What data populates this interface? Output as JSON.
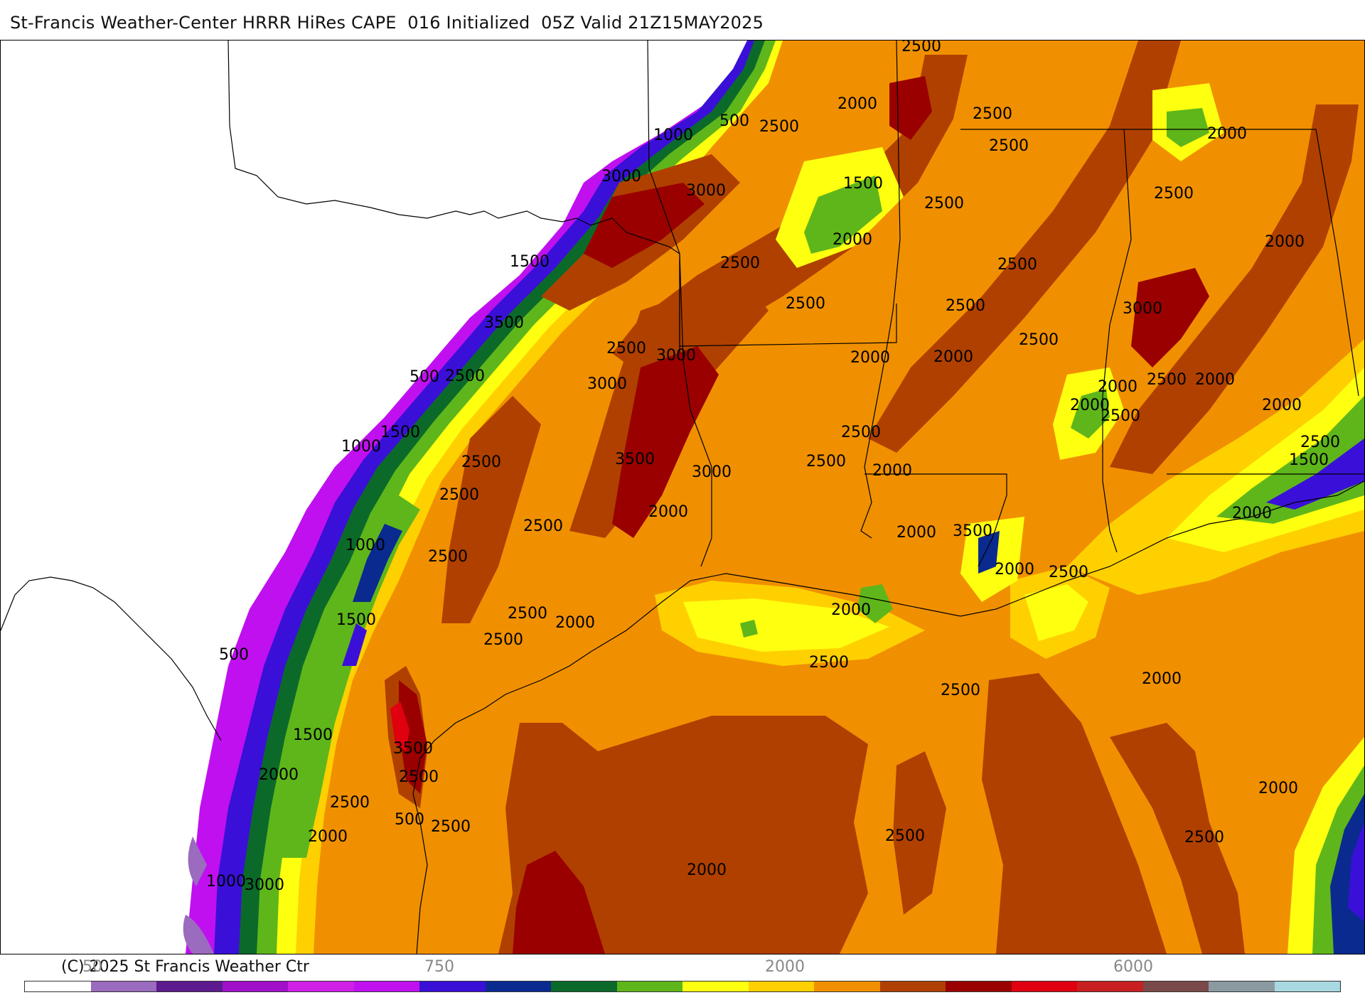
{
  "title": "St-Francis Weather-Center HRRR HiRes CAPE  016 Initialized  05Z Valid 21Z15MAY2025",
  "copyright": "(C) 2025 St Francis Weather Ctr",
  "colorbar": {
    "ticks": [
      "50",
      "750",
      "2000",
      "6000"
    ],
    "colors": [
      "#ffffff",
      "#9b6bbf",
      "#5c1a8e",
      "#a010c8",
      "#d020e6",
      "#c010f0",
      "#3a10d8",
      "#0a2a90",
      "#0b6a2a",
      "#5fb61a",
      "#ffff10",
      "#ffd000",
      "#f09000",
      "#b04000",
      "#9a0000",
      "#e00010",
      "#c82020",
      "#7a4a4a",
      "#8a9aa0",
      "#a8d8e0"
    ]
  },
  "map": {
    "layer": "CAPE",
    "contour_labels": [
      "2500",
      "2000",
      "2500",
      "1000",
      "500",
      "2500",
      "2000",
      "2500",
      "3000",
      "3000",
      "2500",
      "1500",
      "2500",
      "2000",
      "2500",
      "2500",
      "2000",
      "1500",
      "2500",
      "3000",
      "2500",
      "3500",
      "2500",
      "2500",
      "2000",
      "3000",
      "2500",
      "3000",
      "2000",
      "2000",
      "500",
      "2500",
      "2000",
      "2500",
      "2500",
      "1000",
      "1500",
      "2000",
      "2000",
      "3500",
      "2500",
      "3000",
      "2500",
      "2000",
      "2500",
      "2000",
      "1500",
      "3500",
      "2500",
      "1000",
      "2000",
      "2000",
      "2500",
      "2500",
      "2500",
      "2000",
      "2500",
      "2000",
      "2000",
      "1500",
      "500",
      "2500",
      "2500",
      "2500",
      "1500",
      "3500",
      "2000",
      "2500",
      "2000",
      "2500",
      "2000",
      "500",
      "1000",
      "3000",
      "2500",
      "2500",
      "2000",
      "2500",
      "2000"
    ]
  }
}
